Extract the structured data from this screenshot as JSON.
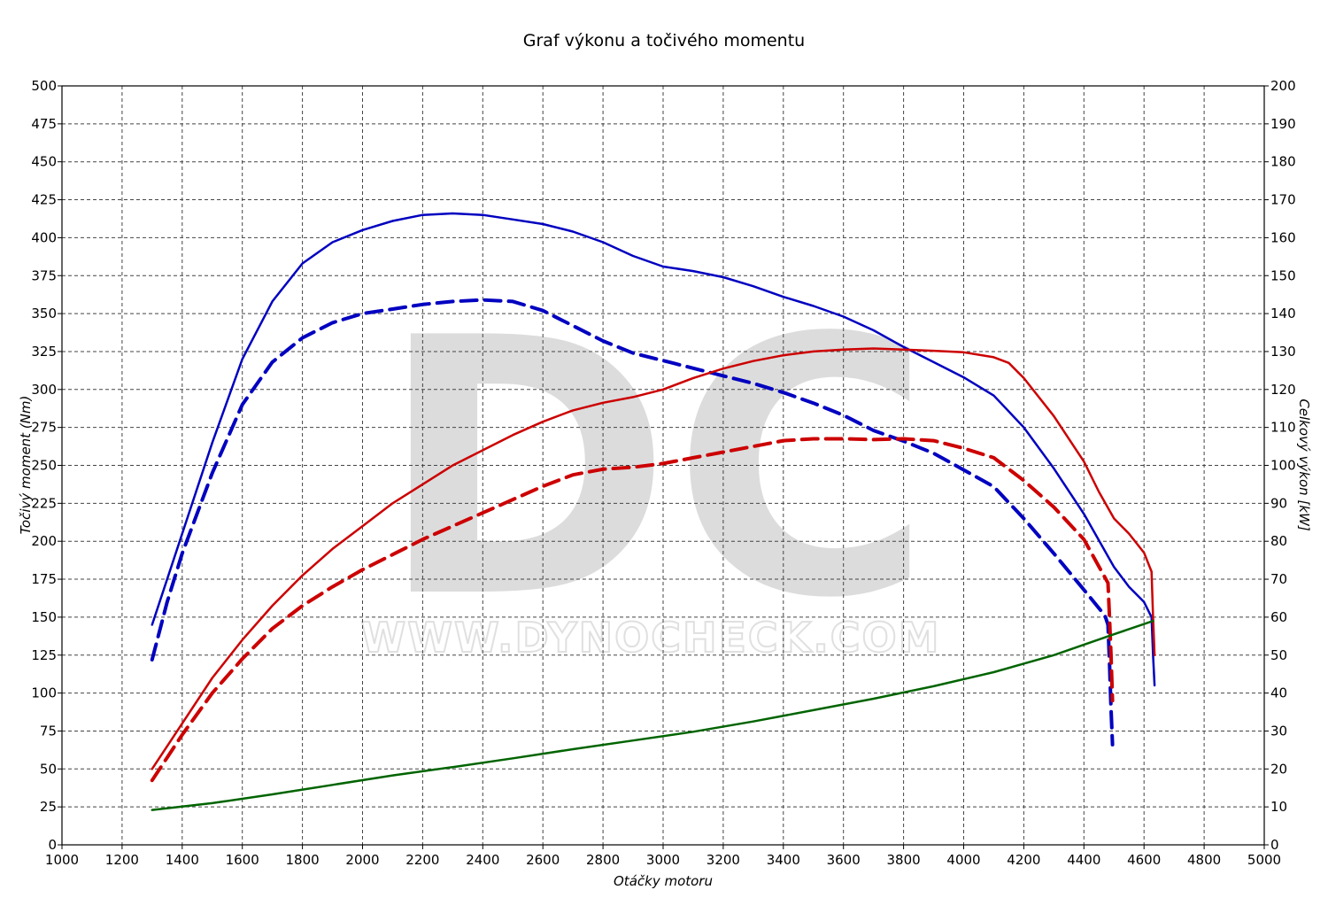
{
  "chart_data": {
    "type": "line",
    "title": "Graf výkonu a točivého momentu",
    "xlabel": "Otáčky motoru",
    "ylabel_left": "Točivý moment (Nm)",
    "ylabel_right": "Celkový výkon [kW]",
    "xlim": [
      1000,
      5000
    ],
    "ylim_left": [
      0,
      500
    ],
    "ylim_right": [
      0,
      200
    ],
    "x_ticks": [
      1000,
      1200,
      1400,
      1600,
      1800,
      2000,
      2200,
      2400,
      2600,
      2800,
      3000,
      3200,
      3400,
      3600,
      3800,
      4000,
      4200,
      4400,
      4600,
      4800,
      5000
    ],
    "y_ticks_left": [
      0,
      25,
      50,
      75,
      100,
      125,
      150,
      175,
      200,
      225,
      250,
      275,
      300,
      325,
      350,
      375,
      400,
      425,
      450,
      475,
      500
    ],
    "y_ticks_right": [
      0,
      10,
      20,
      30,
      40,
      50,
      60,
      70,
      80,
      90,
      100,
      110,
      120,
      130,
      140,
      150,
      160,
      170,
      180,
      190,
      200
    ],
    "grid": true,
    "watermark": {
      "logo": "DC",
      "url": "WWW.DYNOCHECK.COM"
    },
    "series": [
      {
        "axis": "left",
        "color": "#0000c0",
        "dash": false,
        "width": 2.5,
        "points": [
          [
            1300,
            145
          ],
          [
            1400,
            205
          ],
          [
            1500,
            265
          ],
          [
            1600,
            320
          ],
          [
            1700,
            358
          ],
          [
            1800,
            383
          ],
          [
            1900,
            397
          ],
          [
            2000,
            405
          ],
          [
            2100,
            411
          ],
          [
            2200,
            415
          ],
          [
            2300,
            416
          ],
          [
            2400,
            415
          ],
          [
            2500,
            412
          ],
          [
            2600,
            409
          ],
          [
            2700,
            404
          ],
          [
            2800,
            397
          ],
          [
            2900,
            388
          ],
          [
            3000,
            381
          ],
          [
            3100,
            378
          ],
          [
            3200,
            374
          ],
          [
            3300,
            368
          ],
          [
            3400,
            361
          ],
          [
            3500,
            355
          ],
          [
            3600,
            348
          ],
          [
            3700,
            339
          ],
          [
            3800,
            328
          ],
          [
            3900,
            318
          ],
          [
            4000,
            308
          ],
          [
            4100,
            296
          ],
          [
            4200,
            275
          ],
          [
            4300,
            248
          ],
          [
            4400,
            218
          ],
          [
            4500,
            183
          ],
          [
            4550,
            170
          ],
          [
            4600,
            160
          ],
          [
            4625,
            150
          ],
          [
            4630,
            125
          ],
          [
            4635,
            105
          ]
        ]
      },
      {
        "axis": "left",
        "color": "#0000c0",
        "dash": true,
        "width": 4,
        "points": [
          [
            1300,
            122
          ],
          [
            1350,
            160
          ],
          [
            1400,
            192
          ],
          [
            1500,
            245
          ],
          [
            1600,
            290
          ],
          [
            1700,
            318
          ],
          [
            1800,
            334
          ],
          [
            1900,
            344
          ],
          [
            2000,
            350
          ],
          [
            2100,
            353
          ],
          [
            2200,
            356
          ],
          [
            2300,
            358
          ],
          [
            2400,
            359
          ],
          [
            2500,
            358
          ],
          [
            2600,
            352
          ],
          [
            2700,
            342
          ],
          [
            2800,
            332
          ],
          [
            2900,
            324
          ],
          [
            3000,
            319
          ],
          [
            3100,
            314
          ],
          [
            3200,
            309
          ],
          [
            3300,
            304
          ],
          [
            3400,
            298
          ],
          [
            3500,
            291
          ],
          [
            3600,
            283
          ],
          [
            3700,
            273
          ],
          [
            3800,
            266
          ],
          [
            3900,
            258
          ],
          [
            4000,
            247
          ],
          [
            4100,
            236
          ],
          [
            4200,
            215
          ],
          [
            4300,
            192
          ],
          [
            4400,
            168
          ],
          [
            4470,
            151
          ],
          [
            4480,
            145
          ],
          [
            4485,
            120
          ],
          [
            4490,
            90
          ],
          [
            4495,
            66
          ]
        ]
      },
      {
        "axis": "right",
        "color": "#cc0000",
        "dash": false,
        "width": 2.5,
        "points": [
          [
            1300,
            20
          ],
          [
            1400,
            32
          ],
          [
            1500,
            44
          ],
          [
            1600,
            54
          ],
          [
            1700,
            63
          ],
          [
            1800,
            71
          ],
          [
            1900,
            78
          ],
          [
            2000,
            84
          ],
          [
            2100,
            90
          ],
          [
            2200,
            95
          ],
          [
            2300,
            100
          ],
          [
            2400,
            104
          ],
          [
            2500,
            108
          ],
          [
            2600,
            111.5
          ],
          [
            2700,
            114.5
          ],
          [
            2800,
            116.5
          ],
          [
            2900,
            118
          ],
          [
            3000,
            120
          ],
          [
            3100,
            123
          ],
          [
            3200,
            125.5
          ],
          [
            3300,
            127.5
          ],
          [
            3400,
            129
          ],
          [
            3500,
            130
          ],
          [
            3600,
            130.5
          ],
          [
            3700,
            130.8
          ],
          [
            3800,
            130.5
          ],
          [
            3900,
            130.2
          ],
          [
            4000,
            129.8
          ],
          [
            4100,
            128.5
          ],
          [
            4150,
            127
          ],
          [
            4200,
            123
          ],
          [
            4300,
            113
          ],
          [
            4400,
            101
          ],
          [
            4450,
            93
          ],
          [
            4500,
            86
          ],
          [
            4550,
            82
          ],
          [
            4600,
            77
          ],
          [
            4625,
            72
          ],
          [
            4630,
            60
          ],
          [
            4635,
            50
          ]
        ]
      },
      {
        "axis": "right",
        "color": "#cc0000",
        "dash": true,
        "width": 4,
        "points": [
          [
            1300,
            17
          ],
          [
            1400,
            29
          ],
          [
            1500,
            40
          ],
          [
            1600,
            49
          ],
          [
            1700,
            57
          ],
          [
            1800,
            63
          ],
          [
            1900,
            68
          ],
          [
            2000,
            72.5
          ],
          [
            2100,
            76.5
          ],
          [
            2200,
            80.5
          ],
          [
            2300,
            84
          ],
          [
            2400,
            87.5
          ],
          [
            2500,
            91
          ],
          [
            2600,
            94.5
          ],
          [
            2700,
            97.5
          ],
          [
            2800,
            99
          ],
          [
            2900,
            99.5
          ],
          [
            3000,
            100.5
          ],
          [
            3100,
            102
          ],
          [
            3200,
            103.5
          ],
          [
            3300,
            105
          ],
          [
            3400,
            106.5
          ],
          [
            3500,
            107
          ],
          [
            3600,
            107
          ],
          [
            3700,
            106.8
          ],
          [
            3800,
            107
          ],
          [
            3900,
            106.5
          ],
          [
            4000,
            104.5
          ],
          [
            4100,
            102
          ],
          [
            4200,
            96
          ],
          [
            4300,
            89
          ],
          [
            4400,
            80.5
          ],
          [
            4480,
            69
          ],
          [
            4485,
            60
          ],
          [
            4490,
            50
          ],
          [
            4495,
            38
          ]
        ]
      },
      {
        "axis": "right",
        "color": "#006400",
        "dash": false,
        "width": 2.5,
        "points": [
          [
            1300,
            9.2
          ],
          [
            1500,
            11
          ],
          [
            1700,
            13.3
          ],
          [
            1900,
            15.8
          ],
          [
            2100,
            18.3
          ],
          [
            2300,
            20.5
          ],
          [
            2500,
            22.8
          ],
          [
            2700,
            25.2
          ],
          [
            2900,
            27.5
          ],
          [
            3100,
            29.8
          ],
          [
            3300,
            32.5
          ],
          [
            3500,
            35.5
          ],
          [
            3700,
            38.5
          ],
          [
            3900,
            41.8
          ],
          [
            4100,
            45.5
          ],
          [
            4300,
            50
          ],
          [
            4500,
            55.5
          ],
          [
            4630,
            59
          ]
        ]
      }
    ]
  }
}
